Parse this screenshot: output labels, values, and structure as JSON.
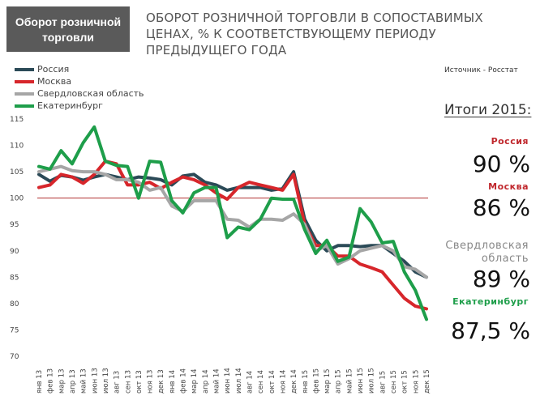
{
  "badge": {
    "line1": "Оборот розничной",
    "line2": "торговли"
  },
  "title": {
    "line1": "ОБОРОТ РОЗНИЧНОЙ ТОРГОВЛИ В СОПОСТАВИМЫХ",
    "line2": "ЦЕНАХ, % К СООТВЕТСТВУЮЩЕМУ ПЕРИОДУ",
    "line3": "ПРЕДЫДУЩЕГО ГОДА"
  },
  "source": "Источник - Росстат",
  "summary": {
    "title": "Итоги 2015:",
    "items": [
      {
        "label": "Россия",
        "value": "90 %",
        "color": "#c0282d"
      },
      {
        "label": "Москва",
        "value": "86 %",
        "color": "#c0282d"
      },
      {
        "label": "Свердловская",
        "label2": "область",
        "value": "89 %",
        "color": "#888888"
      },
      {
        "label": "Екатеринбург",
        "value": "87,5 %",
        "color": "#1e9e4a"
      }
    ]
  },
  "chart_data": {
    "type": "line",
    "ylim": [
      70,
      115
    ],
    "yticks": [
      70,
      75,
      80,
      85,
      90,
      95,
      100,
      105,
      110,
      115
    ],
    "reference_line": 100,
    "grid": false,
    "legend_position": "top-left",
    "categories": [
      "янв 13",
      "фев 13",
      "мар 13",
      "апр 13",
      "май 13",
      "июн 13",
      "июл 13",
      "авг 13",
      "сен 13",
      "окт 13",
      "ноя 13",
      "дек 13",
      "янв 14",
      "фев 14",
      "мар 14",
      "апр 14",
      "май 14",
      "июн 14",
      "июл 14",
      "авг 14",
      "сен 14",
      "окт 14",
      "ноя 14",
      "дек 14",
      "янв 15",
      "фев 15",
      "мар 15",
      "апр 15",
      "май 15",
      "июн 15",
      "июл 15",
      "авг 15",
      "сен 15",
      "окт 15",
      "ноя 15",
      "дек 15"
    ],
    "series": [
      {
        "name": "Россия",
        "color": "#2b4a57",
        "values": [
          104.5,
          103.2,
          104.3,
          104.0,
          103.4,
          104.0,
          104.5,
          104.0,
          103.5,
          104.0,
          103.8,
          103.5,
          102.5,
          104.2,
          104.5,
          103.0,
          102.5,
          101.5,
          102.0,
          102.0,
          102.0,
          101.5,
          101.8,
          105.0,
          96.0,
          92.0,
          90.0,
          91.0,
          91.0,
          90.8,
          91.0,
          91.0,
          89.5,
          88.0,
          86.0,
          85.0
        ]
      },
      {
        "name": "Москва",
        "color": "#d7262b",
        "values": [
          102.0,
          102.5,
          104.5,
          104.0,
          102.8,
          104.5,
          107.0,
          106.5,
          102.5,
          102.5,
          103.0,
          101.8,
          103.0,
          104.0,
          103.5,
          102.5,
          101.0,
          99.8,
          102.0,
          103.0,
          102.5,
          102.0,
          101.5,
          104.5,
          95.0,
          91.0,
          91.0,
          89.0,
          89.0,
          87.5,
          86.8,
          86.0,
          83.5,
          81.0,
          79.5,
          79.0
        ]
      },
      {
        "name": "Свердловская область",
        "color": "#a6a6a6",
        "values": [
          105.0,
          105.5,
          106.0,
          105.2,
          105.0,
          105.0,
          104.5,
          103.5,
          103.5,
          103.0,
          101.5,
          102.0,
          98.5,
          97.5,
          99.5,
          99.5,
          99.5,
          96.0,
          95.8,
          94.5,
          96.0,
          96.0,
          95.8,
          97.0,
          95.0,
          90.0,
          91.0,
          87.5,
          88.5,
          90.0,
          90.5,
          91.0,
          90.0,
          87.0,
          86.5,
          85.0
        ]
      },
      {
        "name": "Екатеринбург",
        "color": "#1e9e4a",
        "values": [
          106.0,
          105.5,
          109.0,
          106.5,
          110.5,
          113.5,
          107.0,
          106.2,
          106.0,
          100.0,
          107.0,
          106.8,
          99.5,
          97.2,
          101.0,
          102.0,
          102.0,
          92.5,
          94.5,
          94.0,
          96.0,
          100.0,
          99.8,
          99.8,
          94.0,
          89.5,
          92.0,
          88.0,
          88.8,
          98.0,
          95.5,
          91.5,
          91.8,
          86.0,
          82.5,
          77.0
        ]
      }
    ]
  }
}
